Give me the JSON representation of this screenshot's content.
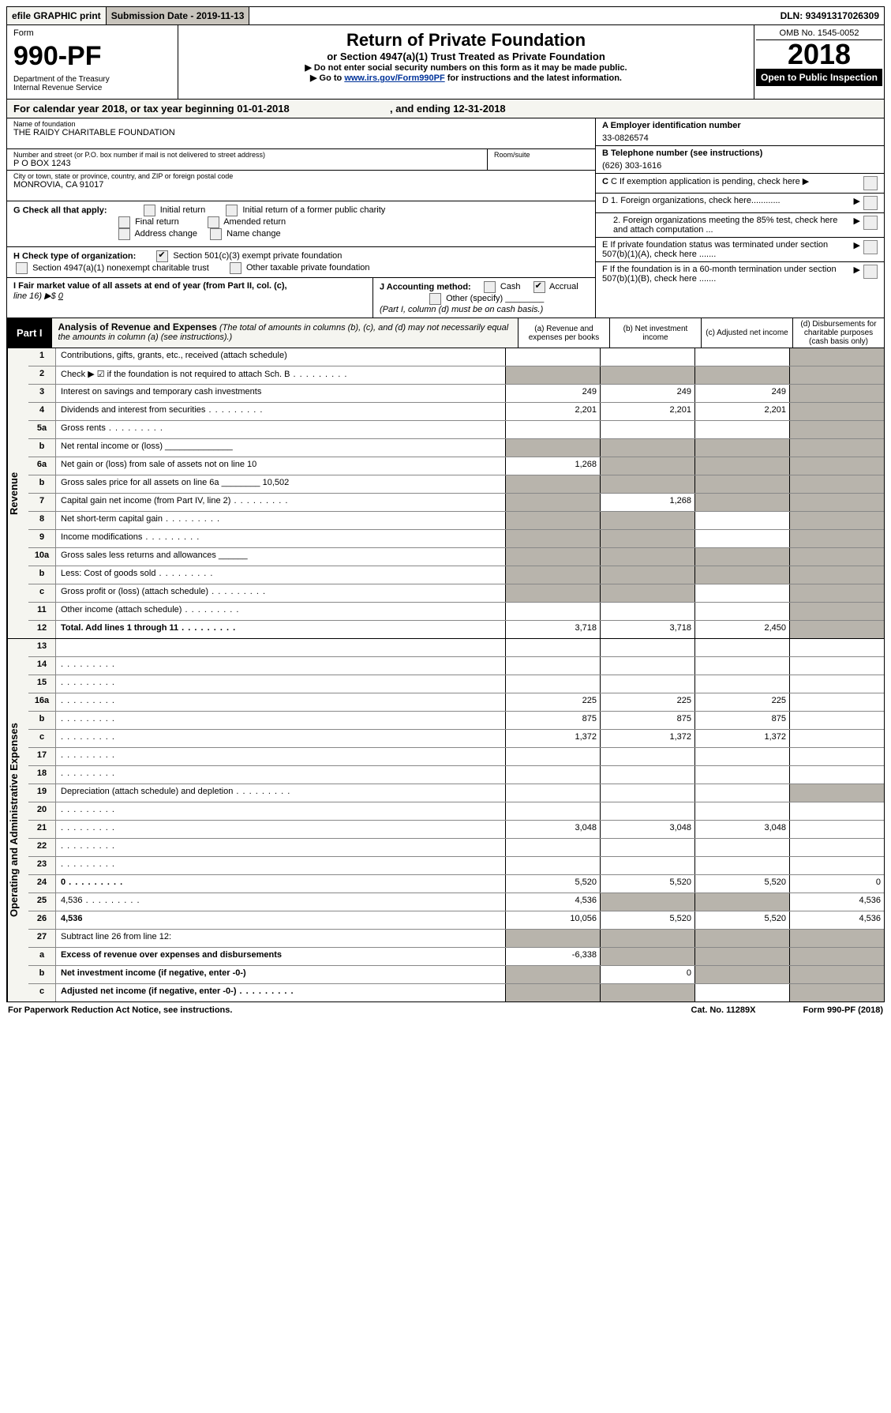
{
  "topbar": {
    "efile": "efile GRAPHIC print",
    "subdate_lbl": "Submission Date - ",
    "subdate": "2019-11-13",
    "dln_lbl": "DLN: ",
    "dln": "93491317026309"
  },
  "header": {
    "form_lbl": "Form",
    "form_no": "990-PF",
    "dept1": "Department of the Treasury",
    "dept2": "Internal Revenue Service",
    "title": "Return of Private Foundation",
    "subtitle": "or Section 4947(a)(1) Trust Treated as Private Foundation",
    "instr1": "▶ Do not enter social security numbers on this form as it may be made public.",
    "instr2a": "▶ Go to ",
    "instr2_link": "www.irs.gov/Form990PF",
    "instr2b": " for instructions and the latest information.",
    "omb": "OMB No. 1545-0052",
    "year": "2018",
    "open": "Open to Public Inspection"
  },
  "calyear": {
    "a": "For calendar year 2018, or tax year beginning ",
    "b": "01-01-2018",
    "c": " , and ending ",
    "d": "12-31-2018"
  },
  "info": {
    "name_lbl": "Name of foundation",
    "name": "THE RAIDY CHARITABLE FOUNDATION",
    "addr_lbl": "Number and street (or P.O. box number if mail is not delivered to street address)",
    "addr": "P O BOX 1243",
    "room_lbl": "Room/suite",
    "city_lbl": "City or town, state or province, country, and ZIP or foreign postal code",
    "city": "MONROVIA, CA  91017",
    "A_lbl": "A Employer identification number",
    "A_val": "33-0826574",
    "B_lbl": "B Telephone number (see instructions)",
    "B_val": "(626) 303-1616",
    "C_lbl": "C If exemption application is pending, check here",
    "D1": "D 1. Foreign organizations, check here............",
    "D2": "2. Foreign organizations meeting the 85% test, check here and attach computation ...",
    "E": "E  If private foundation status was terminated under section 507(b)(1)(A), check here .......",
    "F": "F  If the foundation is in a 60-month termination under section 507(b)(1)(B), check here .......",
    "G_lbl": "G Check all that apply:",
    "G_opts": [
      "Initial return",
      "Initial return of a former public charity",
      "Final return",
      "Amended return",
      "Address change",
      "Name change"
    ],
    "H_lbl": "H Check type of organization:",
    "H1": "Section 501(c)(3) exempt private foundation",
    "H2": "Section 4947(a)(1) nonexempt charitable trust",
    "H3": "Other taxable private foundation",
    "I_lbl": "I Fair market value of all assets at end of year (from Part II, col. (c),",
    "I_line": "line 16) ▶$",
    "I_val": "0",
    "J_lbl": "J Accounting method:",
    "J_cash": "Cash",
    "J_accr": "Accrual",
    "J_other": "Other (specify)",
    "J_note": "(Part I, column (d) must be on cash basis.)"
  },
  "part1": {
    "tag": "Part I",
    "title": "Analysis of Revenue and Expenses",
    "note": "(The total of amounts in columns (b), (c), and (d) may not necessarily equal the amounts in column (a) (see instructions).)",
    "cols": {
      "a": "(a)   Revenue and expenses per books",
      "b": "(b)   Net investment income",
      "c": "(c)   Adjusted net income",
      "d": "(d)   Disbursements for charitable purposes (cash basis only)"
    }
  },
  "sections": {
    "revenue": "Revenue",
    "expenses": "Operating and Administrative Expenses"
  },
  "lines": [
    {
      "n": "1",
      "d": "Contributions, gifts, grants, etc., received (attach schedule)",
      "a": "",
      "b": "",
      "c": "",
      "na_d": true
    },
    {
      "n": "2",
      "d": "Check ▶ ☑ if the foundation is not required to attach Sch. B",
      "dots": true,
      "na_a": true,
      "na_b": true,
      "na_c": true,
      "na_d": true,
      "bold": false
    },
    {
      "n": "3",
      "d": "Interest on savings and temporary cash investments",
      "a": "249",
      "b": "249",
      "c": "249",
      "na_d": true
    },
    {
      "n": "4",
      "d": "Dividends and interest from securities",
      "dots": true,
      "a": "2,201",
      "b": "2,201",
      "c": "2,201",
      "na_d": true
    },
    {
      "n": "5a",
      "d": "Gross rents",
      "dots": true,
      "a": "",
      "b": "",
      "c": "",
      "na_d": true
    },
    {
      "n": "b",
      "d": "Net rental income or (loss)  ______________",
      "na_a": true,
      "na_b": true,
      "na_c": true,
      "na_d": true
    },
    {
      "n": "6a",
      "d": "Net gain or (loss) from sale of assets not on line 10",
      "a": "1,268",
      "na_b": true,
      "na_c": true,
      "na_d": true
    },
    {
      "n": "b",
      "d": "Gross sales price for all assets on line 6a ________ 10,502",
      "na_a": true,
      "na_b": true,
      "na_c": true,
      "na_d": true
    },
    {
      "n": "7",
      "d": "Capital gain net income (from Part IV, line 2)",
      "dots": true,
      "na_a": true,
      "b": "1,268",
      "na_c": true,
      "na_d": true
    },
    {
      "n": "8",
      "d": "Net short-term capital gain",
      "dots": true,
      "na_a": true,
      "na_b": true,
      "c": "",
      "na_d": true
    },
    {
      "n": "9",
      "d": "Income modifications",
      "dots": true,
      "na_a": true,
      "na_b": true,
      "c": "",
      "na_d": true
    },
    {
      "n": "10a",
      "d": "Gross sales less returns and allowances  ______",
      "na_a": true,
      "na_b": true,
      "na_c": true,
      "na_d": true
    },
    {
      "n": "b",
      "d": "Less: Cost of goods sold",
      "dots": true,
      "na_a": true,
      "na_b": true,
      "na_c": true,
      "na_d": true
    },
    {
      "n": "c",
      "d": "Gross profit or (loss) (attach schedule)",
      "dots": true,
      "na_a": true,
      "na_b": true,
      "c": "",
      "na_d": true
    },
    {
      "n": "11",
      "d": "Other income (attach schedule)",
      "dots": true,
      "a": "",
      "b": "",
      "c": "",
      "na_d": true
    },
    {
      "n": "12",
      "d": "Total. Add lines 1 through 11",
      "dots": true,
      "bold": true,
      "a": "3,718",
      "b": "3,718",
      "c": "2,450",
      "na_d": true
    }
  ],
  "exp_lines": [
    {
      "n": "13",
      "d": "",
      "a": "",
      "b": "",
      "c": ""
    },
    {
      "n": "14",
      "d": "",
      "dots": true,
      "a": "",
      "b": "",
      "c": ""
    },
    {
      "n": "15",
      "d": "",
      "dots": true,
      "a": "",
      "b": "",
      "c": ""
    },
    {
      "n": "16a",
      "d": "",
      "dots": true,
      "a": "225",
      "b": "225",
      "c": "225"
    },
    {
      "n": "b",
      "d": "",
      "dots": true,
      "a": "875",
      "b": "875",
      "c": "875"
    },
    {
      "n": "c",
      "d": "",
      "dots": true,
      "a": "1,372",
      "b": "1,372",
      "c": "1,372"
    },
    {
      "n": "17",
      "d": "",
      "dots": true,
      "a": "",
      "b": "",
      "c": ""
    },
    {
      "n": "18",
      "d": "",
      "dots": true,
      "a": "",
      "b": "",
      "c": ""
    },
    {
      "n": "19",
      "d": "Depreciation (attach schedule) and depletion",
      "dots": true,
      "a": "",
      "b": "",
      "c": "",
      "na_d": true
    },
    {
      "n": "20",
      "d": "",
      "dots": true,
      "a": "",
      "b": "",
      "c": ""
    },
    {
      "n": "21",
      "d": "",
      "dots": true,
      "a": "3,048",
      "b": "3,048",
      "c": "3,048"
    },
    {
      "n": "22",
      "d": "",
      "dots": true,
      "a": "",
      "b": "",
      "c": ""
    },
    {
      "n": "23",
      "d": "",
      "dots": true,
      "a": "",
      "b": "",
      "c": ""
    },
    {
      "n": "24",
      "d": "0",
      "dots": true,
      "bold": true,
      "a": "5,520",
      "b": "5,520",
      "c": "5,520"
    },
    {
      "n": "25",
      "d": "4,536",
      "dots": true,
      "a": "4,536",
      "na_b": true,
      "na_c": true
    },
    {
      "n": "26",
      "d": "4,536",
      "bold": true,
      "a": "10,056",
      "b": "5,520",
      "c": "5,520"
    },
    {
      "n": "27",
      "d": "Subtract line 26 from line 12:",
      "na_a": true,
      "na_b": true,
      "na_c": true,
      "na_d": true
    },
    {
      "n": "a",
      "d": "Excess of revenue over expenses and disbursements",
      "bold": true,
      "a": "-6,338",
      "na_b": true,
      "na_c": true,
      "na_d": true
    },
    {
      "n": "b",
      "d": "Net investment income (if negative, enter -0-)",
      "bold": true,
      "na_a": true,
      "b": "0",
      "na_c": true,
      "na_d": true
    },
    {
      "n": "c",
      "d": "Adjusted net income (if negative, enter -0-)",
      "dots": true,
      "bold": true,
      "na_a": true,
      "na_b": true,
      "c": "",
      "na_d": true
    }
  ],
  "footer": {
    "left": "For Paperwork Reduction Act Notice, see instructions.",
    "mid": "Cat. No. 11289X",
    "right": "Form 990-PF (2018)"
  }
}
